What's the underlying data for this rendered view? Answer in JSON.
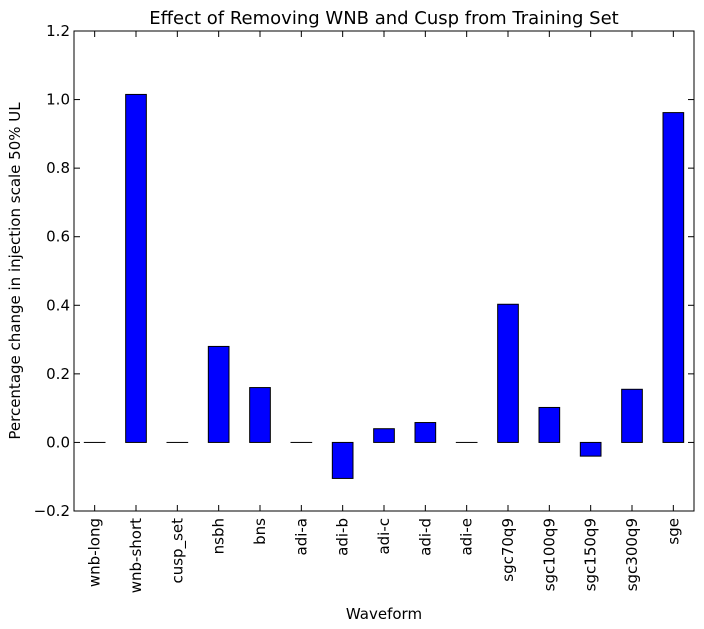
{
  "chart_data": {
    "type": "bar",
    "title": "Effect of Removing WNB and Cusp from Training Set",
    "xlabel": "Waveform",
    "ylabel": "Percentage change in injection scale 50% UL",
    "ylim": [
      -0.2,
      1.2
    ],
    "yticks": [
      -0.2,
      0.0,
      0.2,
      0.4,
      0.6,
      0.8,
      1.0,
      1.2
    ],
    "ytick_labels": [
      "−0.2",
      "0.0",
      "0.2",
      "0.4",
      "0.6",
      "0.8",
      "1.0",
      "1.2"
    ],
    "categories": [
      "wnb-long",
      "wnb-short",
      "cusp_set",
      "nsbh",
      "bns",
      "adi-a",
      "adi-b",
      "adi-c",
      "adi-d",
      "adi-e",
      "sgc70q9",
      "sgc100q9",
      "sgc150q9",
      "sgc300q9",
      "sge"
    ],
    "values": [
      0.0,
      1.015,
      0.0,
      0.28,
      0.16,
      0.0,
      -0.105,
      0.04,
      0.058,
      0.0,
      0.403,
      0.102,
      -0.04,
      0.155,
      0.962
    ],
    "bar_color": "#0000ff",
    "grid": false,
    "legend": "none"
  }
}
